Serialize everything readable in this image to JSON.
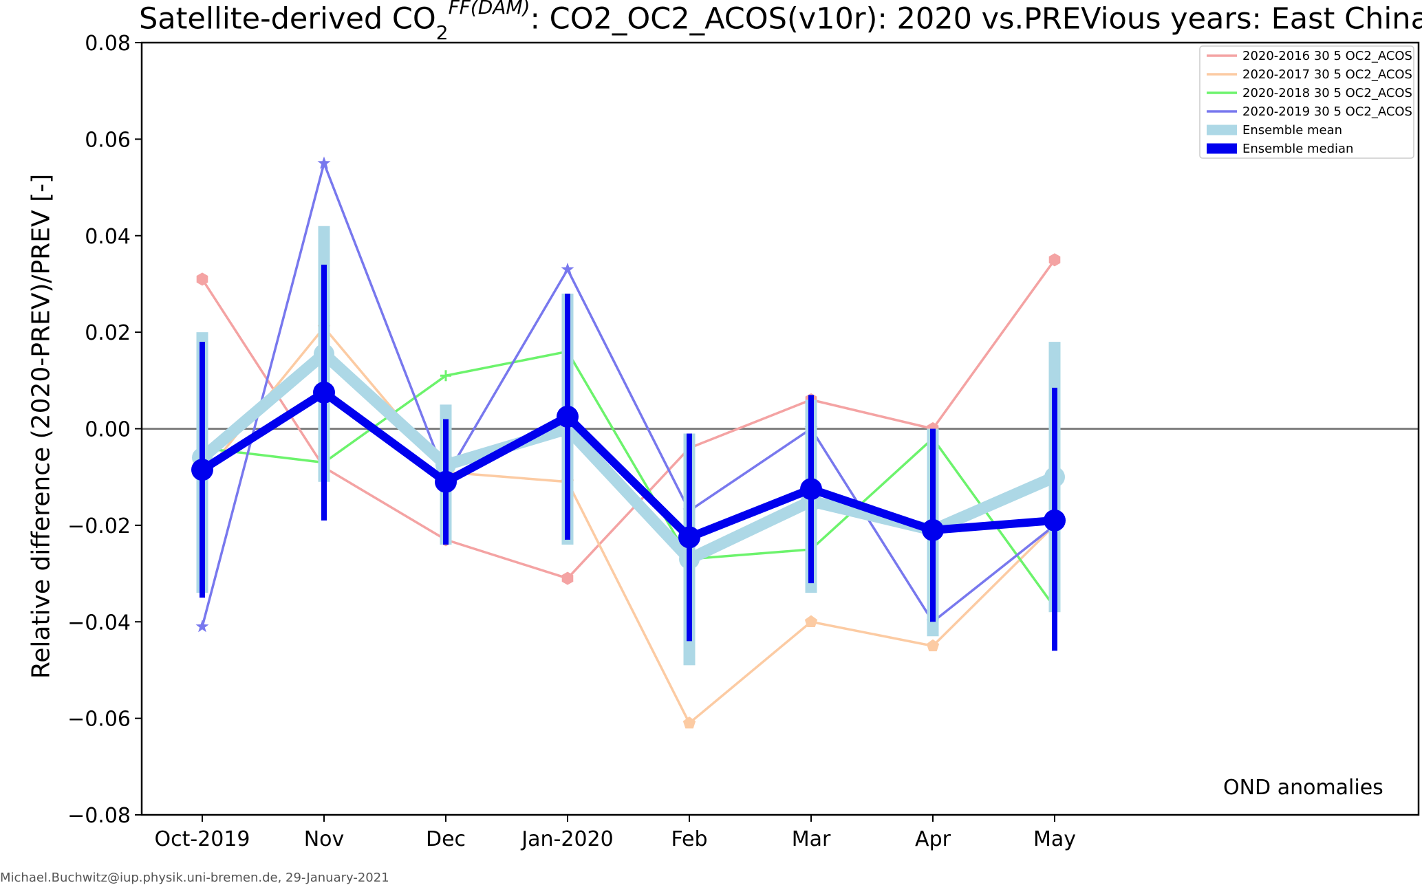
{
  "chart_data": {
    "type": "line",
    "title_parts": {
      "pre": "Satellite-derived CO",
      "sub": "2",
      "sup": "FF(DAM)",
      "post": ": CO2_OC2_ACOS(v10r): 2020 vs.PREVious years: East China"
    },
    "ylabel": "Relative difference (2020-PREV)/PREV [-]",
    "xlabel": "",
    "categories": [
      "Oct-2019",
      "Nov",
      "Dec",
      "Jan-2020",
      "Feb",
      "Mar",
      "Apr",
      "May"
    ],
    "ylim": [
      -0.08,
      0.08
    ],
    "yticks": [
      -0.08,
      -0.06,
      -0.04,
      -0.02,
      0.0,
      0.02,
      0.04,
      0.06,
      0.08
    ],
    "ytick_labels": [
      "−0.08",
      "−0.06",
      "−0.04",
      "−0.02",
      "0.00",
      "0.02",
      "0.04",
      "0.06",
      "0.08"
    ],
    "zero_line": true,
    "grid": false,
    "legend_position": "top-right",
    "annotation": "OND anomalies",
    "series": [
      {
        "name": "2020-2016 30  5 OC2_ACOS",
        "color": "#f4a3a3",
        "marker": "hexagon",
        "values": [
          0.031,
          -0.008,
          -0.023,
          -0.031,
          -0.004,
          0.006,
          0.0,
          0.035
        ]
      },
      {
        "name": "2020-2017 30  5 OC2_ACOS",
        "color": "#fccba3",
        "marker": "pentagon",
        "values": [
          -0.01,
          0.021,
          -0.009,
          -0.011,
          -0.061,
          -0.04,
          -0.045,
          -0.02
        ]
      },
      {
        "name": "2020-2018 30  5 OC2_ACOS",
        "color": "#6cf36c",
        "marker": "plus",
        "values": [
          -0.004,
          -0.007,
          0.011,
          0.016,
          -0.027,
          -0.025,
          -0.002,
          -0.037
        ]
      },
      {
        "name": "2020-2019 30  5 OC2_ACOS",
        "color": "#7878ee",
        "marker": "star",
        "values": [
          -0.041,
          0.055,
          -0.01,
          0.033,
          -0.017,
          0.0,
          -0.04,
          -0.02
        ]
      }
    ],
    "ensemble_mean": {
      "name": "Ensemble mean",
      "color": "#add8e6",
      "values": [
        -0.006,
        0.0155,
        -0.0075,
        0.0,
        -0.027,
        -0.015,
        -0.021,
        -0.01
      ],
      "err_low": [
        -0.034,
        -0.011,
        -0.024,
        -0.024,
        -0.049,
        -0.034,
        -0.043,
        -0.038
      ],
      "err_high": [
        0.02,
        0.042,
        0.005,
        0.028,
        -0.001,
        0.006,
        0.0,
        0.018
      ]
    },
    "ensemble_median": {
      "name": "Ensemble median",
      "color": "#0000ee",
      "values": [
        -0.0085,
        0.0075,
        -0.011,
        0.0025,
        -0.0225,
        -0.0125,
        -0.021,
        -0.019
      ],
      "err_low": [
        -0.035,
        -0.019,
        -0.024,
        -0.023,
        -0.044,
        -0.032,
        -0.04,
        -0.046
      ],
      "err_high": [
        0.018,
        0.034,
        0.002,
        0.028,
        -0.001,
        0.007,
        0.0,
        0.0085
      ]
    }
  },
  "footer": "Michael.Buchwitz@iup.physik.uni-bremen.de, 29-January-2021"
}
